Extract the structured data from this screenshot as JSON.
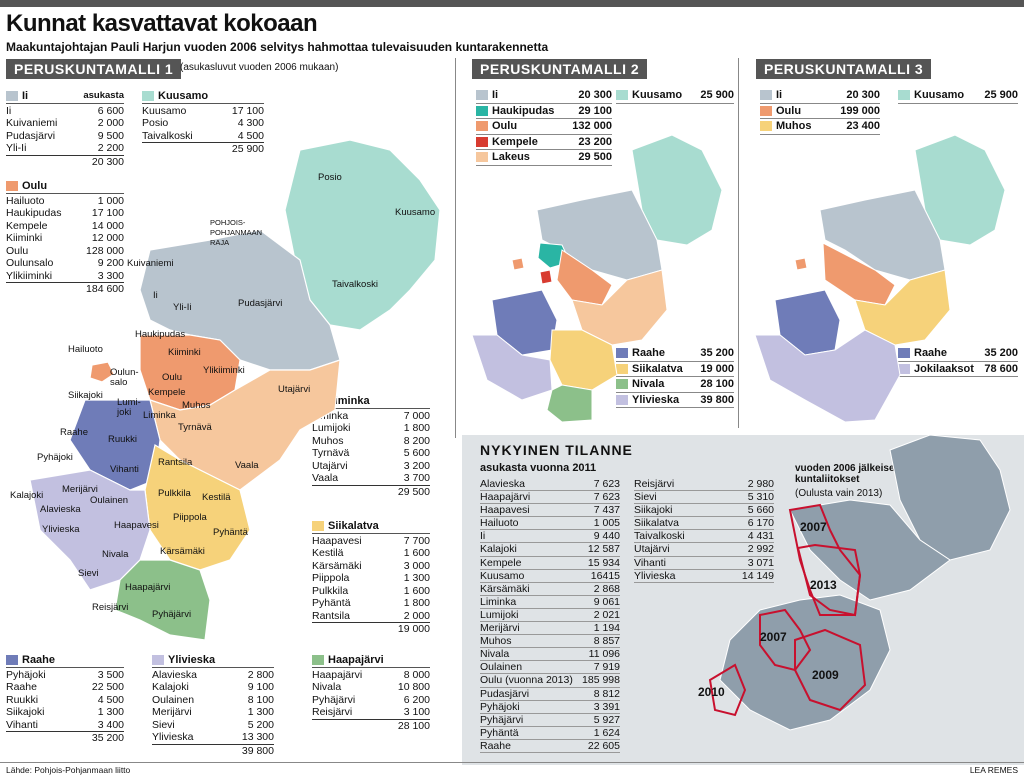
{
  "title": "Kunnat kasvattavat kokoaan",
  "subtitle": "Maakuntajohtajan Pauli Harjun vuoden 2006 selvitys hahmottaa tulevaisuuden kuntarakennetta",
  "colors": {
    "ii": "#b8c4ce",
    "kuusamo": "#a8dcd0",
    "oulu": "#ef9a6e",
    "liminka": "#f6c79d",
    "siikalatva": "#f6d27a",
    "raahe": "#6f7cb8",
    "ylivieska": "#c2c0e0",
    "haapajarvi": "#8cc08a",
    "haukipudas": "#2ab5a4",
    "kempele": "#d83b30",
    "lakeus": "#f6c79d",
    "nivala": "#8cc08a",
    "jokilaaksot": "#c2c0e0",
    "muhos": "#f6d27a",
    "current": "#8f9eab",
    "border": "#c8102e"
  },
  "model1": {
    "header": "PERUSKUNTAMALLI 1",
    "note": "(asukasluvut vuoden 2006 mukaan)",
    "asukasta": "asukasta",
    "groups": {
      "ii": {
        "name": "Ii",
        "rows": [
          [
            "Ii",
            "6 600"
          ],
          [
            "Kuivaniemi",
            "2 000"
          ],
          [
            "Pudasjärvi",
            "9 500"
          ],
          [
            "Yli-Ii",
            "2 200"
          ]
        ],
        "total": "20 300"
      },
      "kuusamo": {
        "name": "Kuusamo",
        "rows": [
          [
            "Kuusamo",
            "17 100"
          ],
          [
            "Posio",
            "4 300"
          ],
          [
            "Taivalkoski",
            "4 500"
          ]
        ],
        "total": "25 900"
      },
      "oulu": {
        "name": "Oulu",
        "rows": [
          [
            "Hailuoto",
            "1 000"
          ],
          [
            "Haukipudas",
            "17 100"
          ],
          [
            "Kempele",
            "14 000"
          ],
          [
            "Kiiminki",
            "12 000"
          ],
          [
            "Oulu",
            "128 000"
          ],
          [
            "Oulunsalo",
            "9 200"
          ],
          [
            "Ylikiiminki",
            "3 300"
          ]
        ],
        "total": "184 600"
      },
      "liminka": {
        "name": "Liminka",
        "rows": [
          [
            "Liminka",
            "7 000"
          ],
          [
            "Lumijoki",
            "1 800"
          ],
          [
            "Muhos",
            "8 200"
          ],
          [
            "Tyrnävä",
            "5 600"
          ],
          [
            "Utajärvi",
            "3 200"
          ],
          [
            "Vaala",
            "3 700"
          ]
        ],
        "total": "29 500"
      },
      "siikalatva": {
        "name": "Siikalatva",
        "rows": [
          [
            "Haapavesi",
            "7 700"
          ],
          [
            "Kestilä",
            "1 600"
          ],
          [
            "Kärsämäki",
            "3 000"
          ],
          [
            "Piippola",
            "1 300"
          ],
          [
            "Pulkkila",
            "1 600"
          ],
          [
            "Pyhäntä",
            "1 800"
          ],
          [
            "Rantsila",
            "2 000"
          ]
        ],
        "total": "19 000"
      },
      "raahe": {
        "name": "Raahe",
        "rows": [
          [
            "Pyhäjoki",
            "3 500"
          ],
          [
            "Raahe",
            "22 500"
          ],
          [
            "Ruukki",
            "4 500"
          ],
          [
            "Siikajoki",
            "1 300"
          ],
          [
            "Vihanti",
            "3 400"
          ]
        ],
        "total": "35 200"
      },
      "ylivieska": {
        "name": "Ylivieska",
        "rows": [
          [
            "Alavieska",
            "2 800"
          ],
          [
            "Kalajoki",
            "9 100"
          ],
          [
            "Oulainen",
            "8 100"
          ],
          [
            "Merijärvi",
            "1 300"
          ],
          [
            "Sievi",
            "5 200"
          ],
          [
            "Ylivieska",
            "13 300"
          ]
        ],
        "total": "39 800"
      },
      "haapajarvi": {
        "name": "Haapajärvi",
        "rows": [
          [
            "Haapajärvi",
            "8 000"
          ],
          [
            "Nivala",
            "10 800"
          ],
          [
            "Pyhäjärvi",
            "6 200"
          ],
          [
            "Reisjärvi",
            "3 100"
          ]
        ],
        "total": "28 100"
      }
    },
    "map_labels": {
      "posio": "Posio",
      "kuusamo": "Kuusamo",
      "taivalkoski": "Taivalkoski",
      "raja": "POHJOIS-\nPOHJANMAAN\nRAJA",
      "kuivaniemi": "Kuivaniemi",
      "ii": "Ii",
      "ylii": "Yli-Ii",
      "pudasjarvi": "Pudasjärvi",
      "haukipudas": "Haukipudas",
      "kiiminki": "Kiiminki",
      "ylikiiminki": "Ylikiiminki",
      "hailuoto": "Hailuoto",
      "oulu": "Oulu",
      "oulunsalo": "Oulun-\nsalo",
      "kempele": "Kempele",
      "utajarvi": "Utajärvi",
      "siikajoki": "Siikajoki",
      "lumijoki": "Lumi-\njoki",
      "muhos": "Muhos",
      "liminka": "Liminka",
      "raahe": "Raahe",
      "ruukki": "Ruukki",
      "tyrnava": "Tyrnävä",
      "pyhajoki": "Pyhäjoki",
      "vihanti": "Vihanti",
      "rantsila": "Rantsila",
      "vaala": "Vaala",
      "kalajoki": "Kalajoki",
      "merijarvi": "Merijärvi",
      "pulkkila": "Pulkkila",
      "kestila": "Kestilä",
      "alavieska": "Alavieska",
      "oulainen": "Oulainen",
      "haapavesi": "Haapavesi",
      "piippola": "Piippola",
      "pyhanta": "Pyhäntä",
      "ylivieska": "Ylivieska",
      "nivala": "Nivala",
      "karsamaki": "Kärsämäki",
      "sievi": "Sievi",
      "haapajarvi": "Haapajärvi",
      "reisjarvi": "Reisjärvi",
      "pyhajarvi": "Pyhäjärvi"
    }
  },
  "model2": {
    "header": "PERUSKUNTAMALLI 2",
    "top": [
      [
        "Ii",
        "20 300",
        "ii"
      ],
      [
        "Haukipudas",
        "29 100",
        "haukipudas"
      ],
      [
        "Oulu",
        "132 000",
        "oulu"
      ],
      [
        "Kempele",
        "23 200",
        "kempele"
      ],
      [
        "Lakeus",
        "29 500",
        "lakeus"
      ]
    ],
    "kuusamo": [
      "Kuusamo",
      "25 900",
      "kuusamo"
    ],
    "bottom": [
      [
        "Raahe",
        "35 200",
        "raahe"
      ],
      [
        "Siikalatva",
        "19 000",
        "siikalatva"
      ],
      [
        "Nivala",
        "28 100",
        "nivala"
      ],
      [
        "Ylivieska",
        "39 800",
        "ylivieska"
      ]
    ]
  },
  "model3": {
    "header": "PERUSKUNTAMALLI 3",
    "top": [
      [
        "Ii",
        "20 300",
        "ii"
      ],
      [
        "Oulu",
        "199 000",
        "oulu"
      ],
      [
        "Muhos",
        "23 400",
        "muhos"
      ]
    ],
    "kuusamo": [
      "Kuusamo",
      "25 900",
      "kuusamo"
    ],
    "bottom": [
      [
        "Raahe",
        "35 200",
        "raahe"
      ],
      [
        "Jokilaaksot",
        "78 600",
        "jokilaaksot"
      ]
    ]
  },
  "current": {
    "header": "NYKYINEN TILANNE",
    "sub": "asukasta vuonna 2011",
    "col1": [
      [
        "Alavieska",
        "7 623"
      ],
      [
        "Haapajärvi",
        "7 623"
      ],
      [
        "Haapavesi",
        "7 437"
      ],
      [
        "Hailuoto",
        "1 005"
      ],
      [
        "Ii",
        "9 440"
      ],
      [
        "Kalajoki",
        "12 587"
      ],
      [
        "Kempele",
        "15 934"
      ],
      [
        "Kuusamo",
        "16415"
      ],
      [
        "Kärsämäki",
        "2 868"
      ],
      [
        "Liminka",
        "9 061"
      ],
      [
        "Lumijoki",
        "2 021"
      ],
      [
        "Merijärvi",
        "1 194"
      ],
      [
        "Muhos",
        "8 857"
      ],
      [
        "Nivala",
        "11 096"
      ],
      [
        "Oulainen",
        "7 919"
      ],
      [
        "Oulu (vuonna 2013)",
        "185 998"
      ],
      [
        "Pudasjärvi",
        "8 812"
      ],
      [
        "Pyhäjoki",
        "3 391"
      ],
      [
        "Pyhäjärvi",
        "5 927"
      ],
      [
        "Pyhäntä",
        "1 624"
      ],
      [
        "Raahe",
        "22 605"
      ]
    ],
    "col2": [
      [
        "Reisjärvi",
        "2 980"
      ],
      [
        "Sievi",
        "5 310"
      ],
      [
        "Siikajoki",
        "5 660"
      ],
      [
        "Siikalatva",
        "6 170"
      ],
      [
        "Taivalkoski",
        "4 431"
      ],
      [
        "Utajärvi",
        "2 992"
      ],
      [
        "Vihanti",
        "3 071"
      ],
      [
        "Ylivieska",
        "14 149"
      ]
    ],
    "map_title": "vuoden 2006 jälkeiset kuntaliitokset",
    "map_sub": "(Oulusta vain 2013)",
    "years": [
      "2007",
      "2013",
      "2007",
      "2009",
      "2010"
    ]
  },
  "footer_left": "Lähde: Pohjois-Pohjanmaan liitto",
  "footer_right": "LEA REMES"
}
